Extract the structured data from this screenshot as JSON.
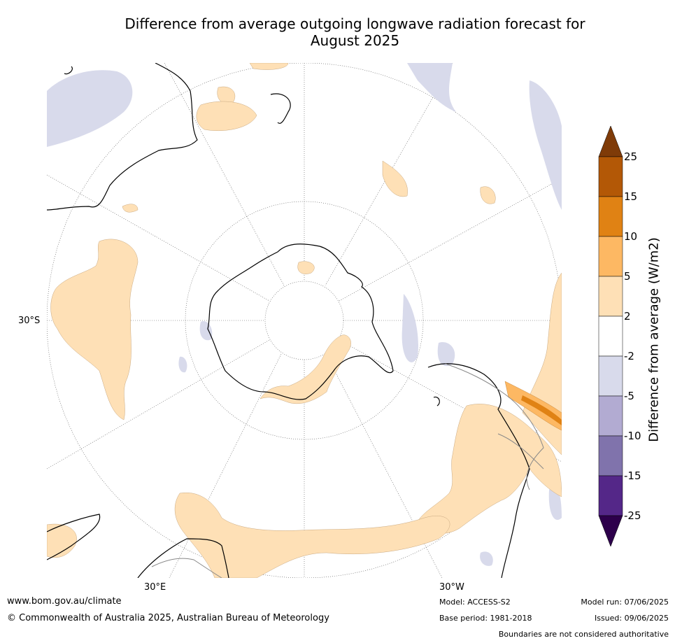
{
  "title_line1": "Difference from average outgoing longwave radiation forecast for",
  "title_line2": "August 2025",
  "axis_labels": {
    "lat_30s": "30°S",
    "lon_30e": "30°E",
    "lon_30w": "30°W"
  },
  "colorbar": {
    "label": "Difference from average (W/m2)",
    "ticks": [
      "25",
      "15",
      "10",
      "5",
      "2",
      "-2",
      "-5",
      "-10",
      "-15",
      "-25"
    ],
    "colors": [
      "#7f3b08",
      "#b35806",
      "#e08214",
      "#fdb863",
      "#fee0b6",
      "#ffffff",
      "#d8daeb",
      "#b2abd2",
      "#8073ac",
      "#542788",
      "#2d004b"
    ]
  },
  "footer": {
    "website": "www.bom.gov.au/climate",
    "copyright": "© Commonwealth of Australia 2025, Australian Bureau of Meteorology",
    "model": "Model: ACCESS-S2",
    "base_period": "Base period: 1981-2018",
    "model_run": "Model run: 07/06/2025",
    "issued": "Issued: 09/06/2025",
    "disclaimer": "Boundaries are not considered authoritative"
  }
}
